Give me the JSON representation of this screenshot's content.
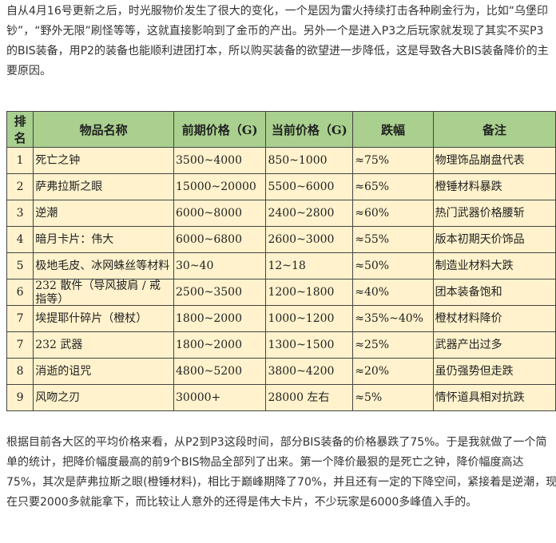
{
  "intro": "自从4月16号更新之后，时光服物价发生了很大的变化，一个是因为雷火持续打击各种刷金行为，比如“乌堡印钞”，“野外无限”刷怪等等，这就直接影响到了金币的产出。另外一个是进入P3之后玩家就发现了其实不买P3的BIS装备，用P2的装备也能顺利进团打本，所以购买装备的欲望进一步降低，这是导致各大BIS装备降价的主要原因。",
  "table": {
    "headers": [
      "排名",
      "物品名称",
      "前期价格（G)",
      "当前价格（G)",
      "跌幅",
      "备注"
    ],
    "rows": [
      [
        "1",
        "死亡之钟",
        "3500~4000",
        "850~1000",
        "≈75%",
        "物理饰品崩盘代表"
      ],
      [
        "2",
        "萨弗拉斯之眼",
        "15000~20000",
        "5500~6000",
        "≈65%",
        "橙锤材料暴跌"
      ],
      [
        "3",
        "逆潮",
        "6000~8000",
        "2400~2800",
        "≈60%",
        "热门武器价格腰斩"
      ],
      [
        "4",
        "暗月卡片：伟大",
        "6000~6800",
        "2600~3000",
        "≈55%",
        "版本初期天价饰品"
      ],
      [
        "5",
        "极地毛皮、冰网蛛丝等材料",
        "30~40",
        "12~18",
        "≈50%",
        "制造业材料大跌"
      ],
      [
        "6",
        "232 散件（导风披肩 / 戒指等）",
        "2500~3500",
        "1200~1800",
        "≈40%",
        "团本装备饱和"
      ],
      [
        "7",
        "埃提耶什碎片（橙杖）",
        "1800~2000",
        "1000~1200",
        "≈35%~40%",
        "橙杖材料降价"
      ],
      [
        "7",
        "232 武器",
        "1800~2000",
        "1300~1500",
        "≈25%",
        "武器产出过多"
      ],
      [
        "8",
        "消逝的诅咒",
        "4800~5200",
        "3800~4200",
        "≈20%",
        "虽仍强势但走跌"
      ],
      [
        "9",
        "风吻之刃",
        "30000+",
        "28000 左右",
        "≈5%",
        "情怀道具相对抗跌"
      ]
    ]
  },
  "outro": "根据目前各大区的平均价格来看，从P2到P3这段时间，部分BIS装备的价格暴跌了75%。于是我就做了一个简单的统计，把降价幅度最高的前9个BIS物品全部列了出来。第一个降价最狠的是死亡之钟，降价幅度高达75%，其次是萨弗拉斯之眼(橙锤材料)，相比于巅峰期降了70%，并且还有一定的下降空间，紧接着是逆潮，现在只要2000多就能拿下，而比较让人意外的还得是伟大卡片，不少玩家是6000多峰值入手的。",
  "colors": {
    "header_bg": "#a9d08e",
    "row_bg": "#fff2cc"
  }
}
